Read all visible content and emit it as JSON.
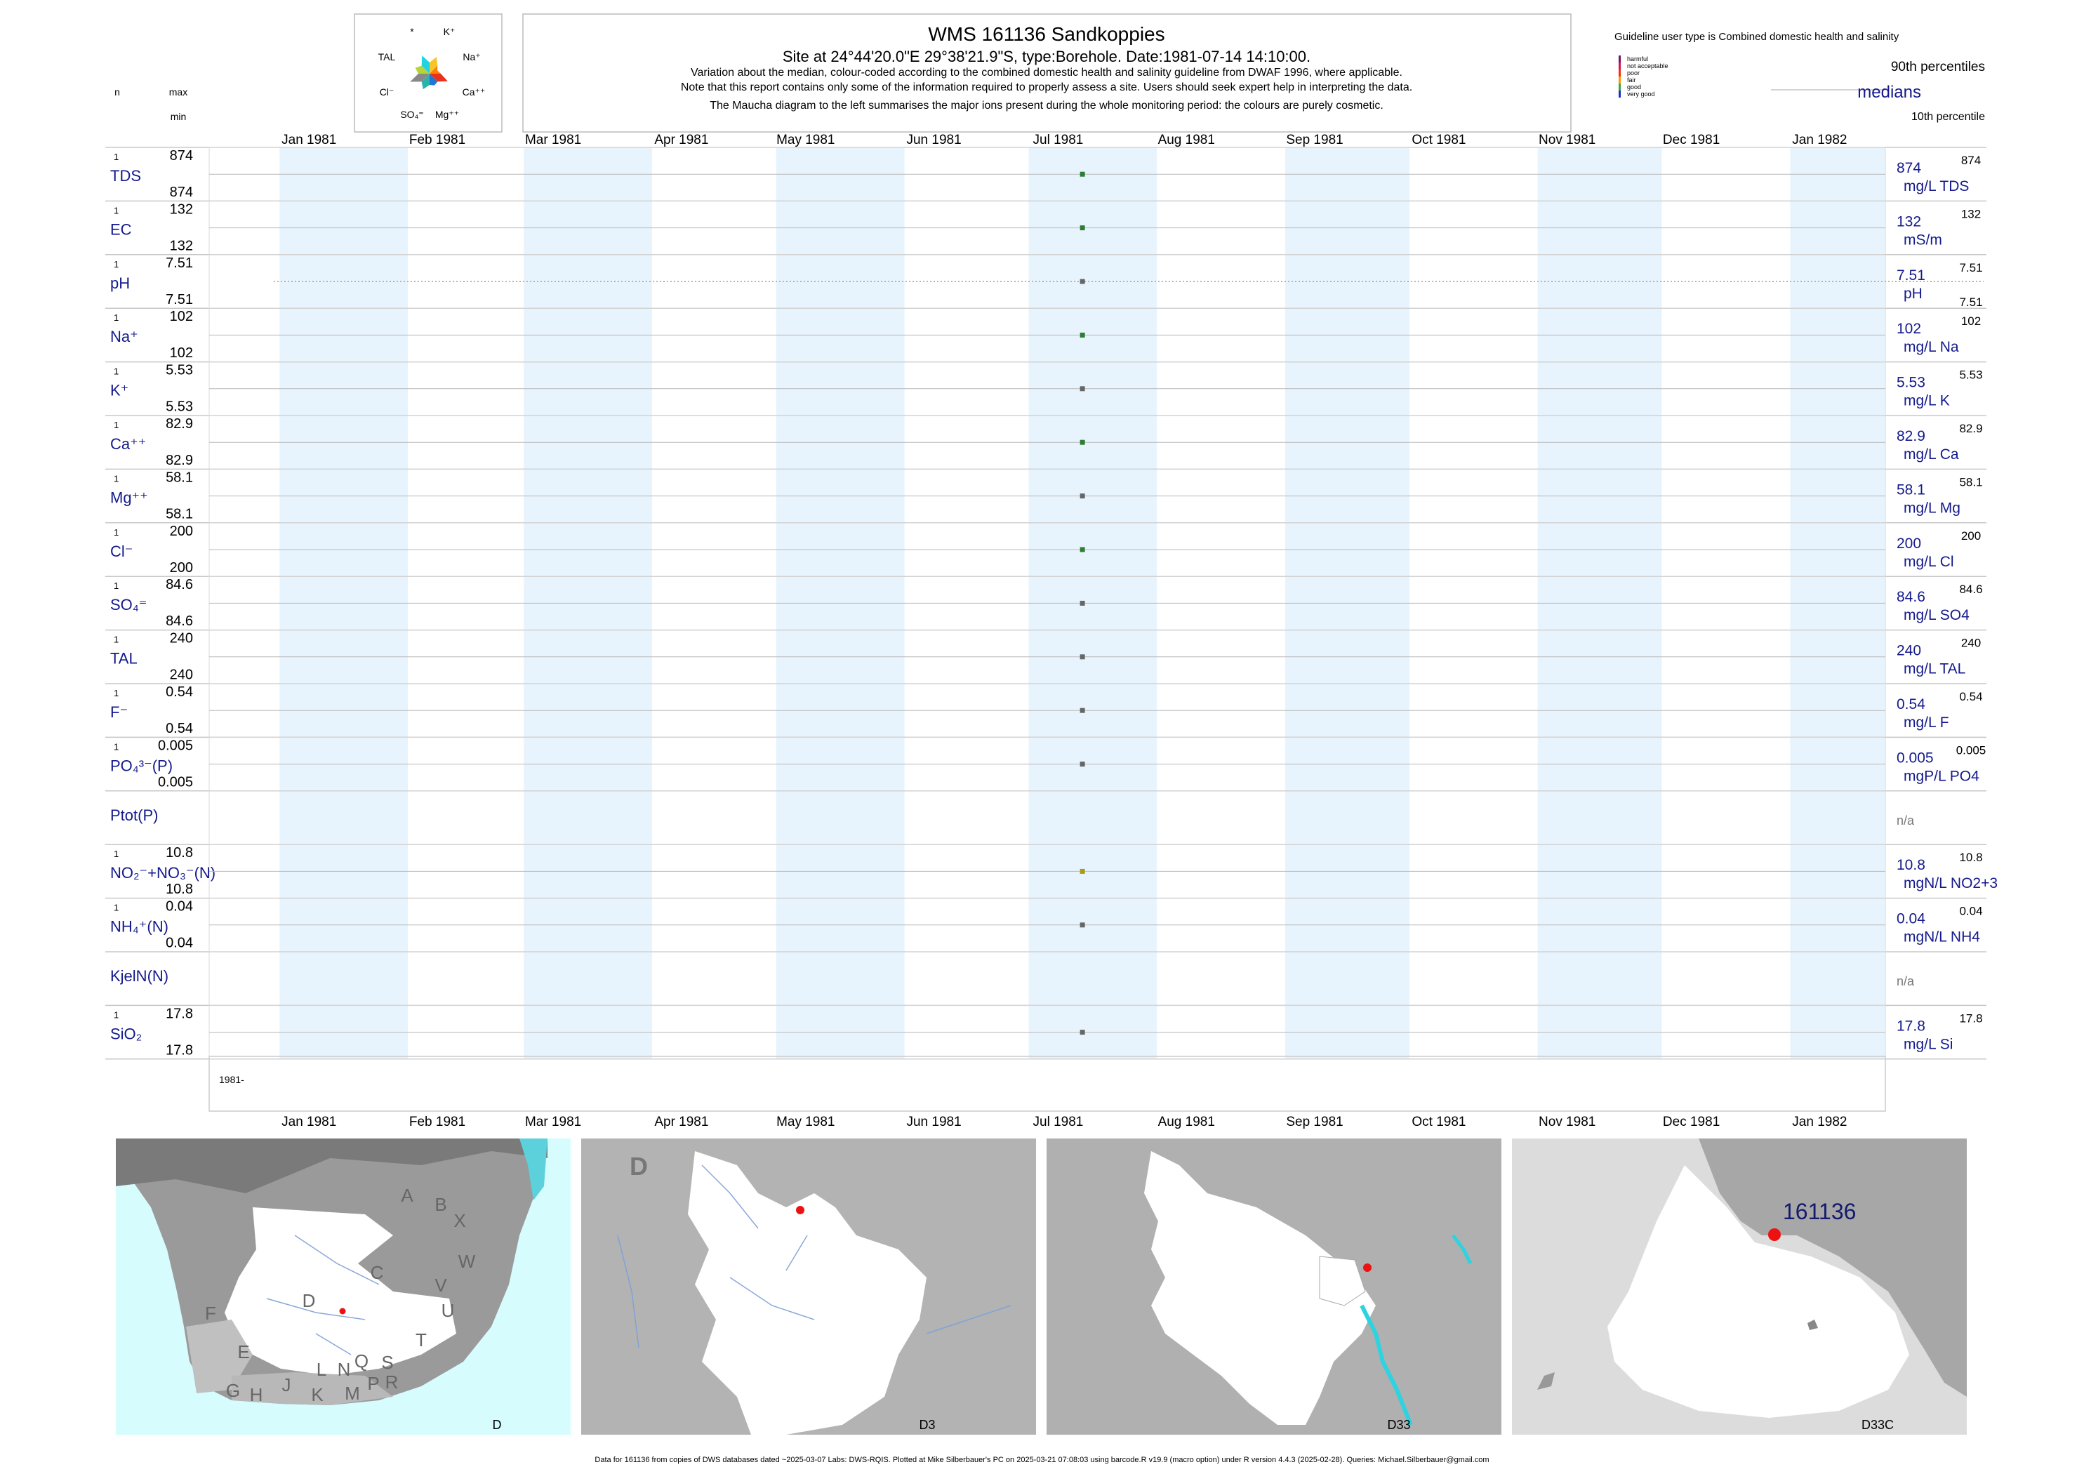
{
  "header": {
    "title": "WMS 161136  Sandkoppies",
    "subtitle": "Site at 24°44'20.0\"E 29°38'21.9\"S, type:Borehole. Date:1981-07-14 14:10:00.",
    "notes": [
      "Variation about the median,  colour-coded according to the combined domestic health and salinity guideline from DWAF 1996, where applicable.",
      "Note that this report contains only some of the information required to properly assess a site. Users should seek expert help in interpreting the data.",
      "The Maucha diagram to the left summarises the major ions present during the whole monitoring period: the colours are purely cosmetic."
    ],
    "col_n": "n",
    "col_max": "max",
    "col_min": "min"
  },
  "maucha": {
    "labels": [
      "*",
      "K⁺",
      "Na⁺",
      "Ca⁺⁺",
      "Mg⁺⁺",
      "SO₄⁼",
      "Cl⁻",
      "TAL"
    ],
    "colors": [
      "#f7c52b",
      "#ff7f00",
      "#e8321e",
      "#1f77d4",
      "#2ab3ad",
      "#888888",
      "#b5d436",
      "#21d4e0"
    ]
  },
  "legend": {
    "guideline_text": "Guideline user type is Combined domestic health and salinity",
    "classes": [
      {
        "label": "harmful",
        "color": "#7b0f6b"
      },
      {
        "label": "not acceptable",
        "color": "#d40f5e"
      },
      {
        "label": "poor",
        "color": "#ff2a00"
      },
      {
        "label": "fair",
        "color": "#ff9900"
      },
      {
        "label": "good",
        "color": "#3aa63a"
      },
      {
        "label": "very good",
        "color": "#1b2bd4"
      }
    ],
    "p90": "90th percentiles",
    "medians": "medians",
    "p10": "10th percentile"
  },
  "chart_data": {
    "type": "scatter",
    "x_start": "1981-01",
    "x_end": "1982-01",
    "month_labels": [
      "Jan 1981",
      "Feb 1981",
      "Mar 1981",
      "Apr 1981",
      "May 1981",
      "Jun 1981",
      "Jul 1981",
      "Aug 1981",
      "Sep 1981",
      "Oct 1981",
      "Nov 1981",
      "Dec 1981",
      "Jan 1982"
    ],
    "sample_date": "1981-07-14",
    "year_label": "1981-",
    "rows": [
      {
        "label": "TDS",
        "n": "1",
        "max": "874",
        "min": "874",
        "value": "874",
        "units": "mg/L TDS",
        "p90": "874",
        "color": "#2e7d32"
      },
      {
        "label": "EC",
        "n": "1",
        "max": "132",
        "min": "132",
        "value": "132",
        "units": "mS/m",
        "p90": "132",
        "color": "#2e7d32"
      },
      {
        "label": "pH",
        "n": "1",
        "max": "7.51",
        "min": "7.51",
        "value": "7.51",
        "units": "pH",
        "p90": "7.51",
        "p10": "7.51",
        "color": "#666666",
        "dotted": true
      },
      {
        "label": "Na⁺",
        "n": "1",
        "max": "102",
        "min": "102",
        "value": "102",
        "units": "mg/L Na",
        "p90": "102",
        "color": "#2e7d32"
      },
      {
        "label": "K⁺",
        "n": "1",
        "max": "5.53",
        "min": "5.53",
        "value": "5.53",
        "units": "mg/L K",
        "p90": "5.53",
        "color": "#666666"
      },
      {
        "label": "Ca⁺⁺",
        "n": "1",
        "max": "82.9",
        "min": "82.9",
        "value": "82.9",
        "units": "mg/L Ca",
        "p90": "82.9",
        "color": "#2e7d32"
      },
      {
        "label": "Mg⁺⁺",
        "n": "1",
        "max": "58.1",
        "min": "58.1",
        "value": "58.1",
        "units": "mg/L Mg",
        "p90": "58.1",
        "color": "#666666"
      },
      {
        "label": "Cl⁻",
        "n": "1",
        "max": "200",
        "min": "200",
        "value": "200",
        "units": "mg/L Cl",
        "p90": "200",
        "color": "#2e7d32"
      },
      {
        "label": "SO₄⁼",
        "n": "1",
        "max": "84.6",
        "min": "84.6",
        "value": "84.6",
        "units": "mg/L SO4",
        "p90": "84.6",
        "color": "#666666"
      },
      {
        "label": "TAL",
        "n": "1",
        "max": "240",
        "min": "240",
        "value": "240",
        "units": "mg/L TAL",
        "p90": "240",
        "color": "#666666"
      },
      {
        "label": "F⁻",
        "n": "1",
        "max": "0.54",
        "min": "0.54",
        "value": "0.54",
        "units": "mg/L F",
        "p90": "0.54",
        "color": "#666666"
      },
      {
        "label": "PO₄³⁻(P)",
        "n": "1",
        "max": "0.005",
        "min": "0.005",
        "value": "0.005",
        "units": "mgP/L PO4",
        "p90": "0.005",
        "color": "#666666"
      },
      {
        "label": "Ptot(P)",
        "value": "n/a",
        "na": true
      },
      {
        "label": "NO₂⁻+NO₃⁻(N)",
        "n": "1",
        "max": "10.8",
        "min": "10.8",
        "value": "10.8",
        "units": "mgN/L NO2+3",
        "p90": "10.8",
        "color": "#a69b1b"
      },
      {
        "label": "NH₄⁺(N)",
        "n": "1",
        "max": "0.04",
        "min": "0.04",
        "value": "0.04",
        "units": "mgN/L NH4",
        "p90": "0.04",
        "color": "#666666"
      },
      {
        "label": "KjelN(N)",
        "value": "n/a",
        "na": true
      },
      {
        "label": "SiO₂",
        "n": "1",
        "max": "17.8",
        "min": "17.8",
        "value": "17.8",
        "units": "mg/L Si",
        "p90": "17.8",
        "color": "#666666"
      }
    ]
  },
  "maps": [
    {
      "caption": "D",
      "region_labels": [
        "A",
        "B",
        "X",
        "C",
        "W",
        "V",
        "U",
        "T",
        "D",
        "F",
        "E",
        "G",
        "H",
        "J",
        "K",
        "L",
        "N",
        "M",
        "Q",
        "P",
        "S",
        "R"
      ]
    },
    {
      "caption": "D3",
      "region_labels": [
        "D"
      ]
    },
    {
      "caption": "D33",
      "region_labels": []
    },
    {
      "caption": "D33C",
      "site_label": "161136"
    }
  ],
  "footer": "Data for 161136 from copies of DWS databases dated ~2025-03-07 Labs: DWS-RQIS. Plotted at Mike Silberbauer's PC on 2025-03-21 07:08:03 using barcode.R v19.9 (macro option) under R version 4.4.3 (2025-02-28). Queries: Michael.Silberbauer@gmail.com"
}
